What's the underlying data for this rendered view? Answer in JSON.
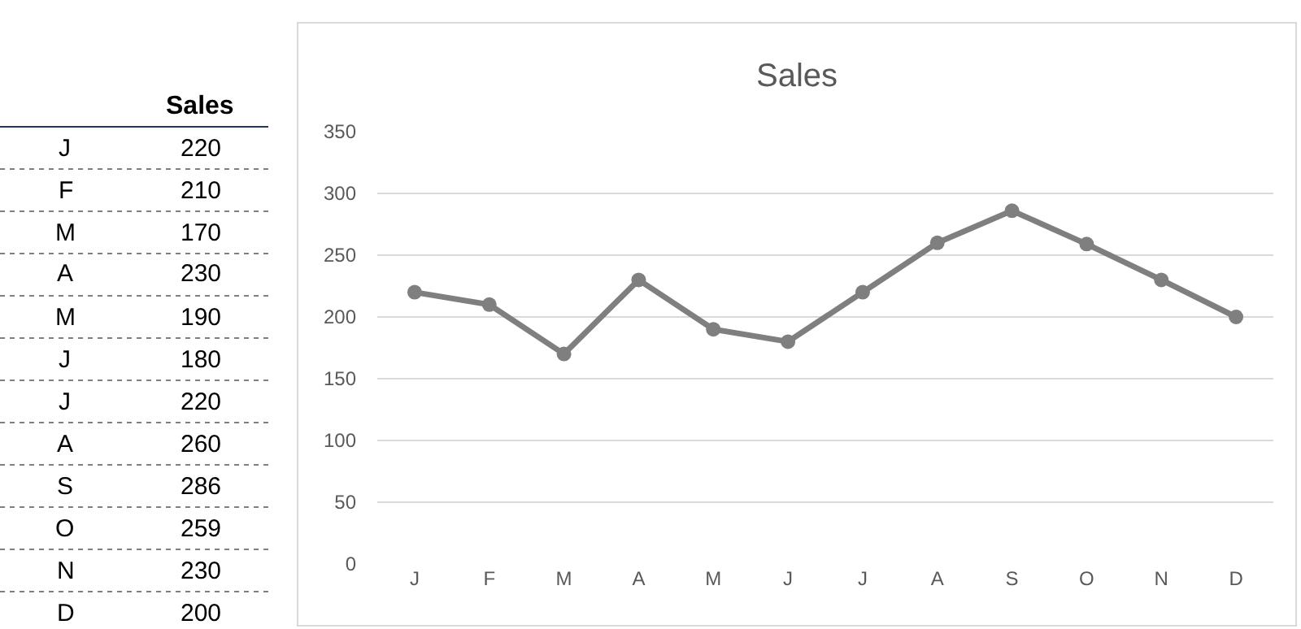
{
  "chart_data": [
    {
      "type": "other",
      "title": "Sales",
      "categories": [
        "J",
        "F",
        "M",
        "A",
        "M",
        "J",
        "J",
        "A",
        "S",
        "O",
        "N",
        "D"
      ],
      "value_labels": [
        "220",
        "210",
        "170",
        "230",
        "190",
        "180",
        "220",
        "260",
        "286",
        "259",
        "230",
        "200"
      ]
    },
    {
      "type": "line",
      "title": "Sales",
      "categories": [
        "J",
        "F",
        "M",
        "A",
        "M",
        "J",
        "J",
        "A",
        "S",
        "O",
        "N",
        "D"
      ],
      "series": [
        {
          "color": "#7f7f7f",
          "values": [
            220,
            210,
            170,
            230,
            190,
            180,
            220,
            260,
            286,
            259,
            230,
            200
          ]
        }
      ],
      "ylim": [
        0,
        350
      ],
      "yticks": [
        0,
        50,
        100,
        150,
        200,
        250,
        300,
        350
      ],
      "grid": "y",
      "legend": false,
      "marker": "circle",
      "line_style": "solid"
    }
  ]
}
